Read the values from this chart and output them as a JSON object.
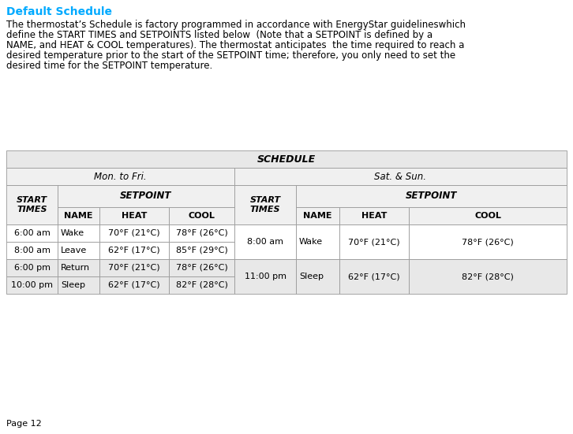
{
  "title": "Default Schedule",
  "title_color": "#00aaff",
  "paragraph_lines": [
    "The thermostat’s Schedule is factory programmed in accordance with EnergyStar guidelineswhich",
    "define the START TIMES and SETPOINTS listed below  (Note that a SETPOINT is defined by a",
    "NAME, and HEAT & COOL temperatures). The thermostat anticipates  the time required to reach a",
    "desired temperature prior to the start of the SETPOINT time; therefore, you only need to set the",
    "desired time for the SETPOINT temperature."
  ],
  "page_label": "Page 12",
  "table_header": "SCHEDULE",
  "col_group1": "Mon. to Fri.",
  "col_group2": "Sat. & Sun.",
  "mf_rows": [
    [
      "6:00 am",
      "Wake",
      "70°F (21°C)",
      "78°F (26°C)"
    ],
    [
      "8:00 am",
      "Leave",
      "62°F (17°C)",
      "85°F (29°C)"
    ],
    [
      "6:00 pm",
      "Return",
      "70°F (21°C)",
      "78°F (26°C)"
    ],
    [
      "10:00 pm",
      "Sleep",
      "62°F (17°C)",
      "82°F (28°C)"
    ]
  ],
  "ss_rows": [
    [
      "8:00 am",
      "Wake",
      "70°F (21°C)",
      "78°F (26°C)"
    ],
    [
      "11:00 pm",
      "Sleep",
      "62°F (17°C)",
      "82°F (28°C)"
    ]
  ],
  "bg_header": "#e8e8e8",
  "bg_subheader": "#f0f0f0",
  "bg_white": "#ffffff",
  "bg_data_odd": "#ffffff",
  "bg_data_even": "#e8e8e8",
  "border_color": "#999999",
  "text_color": "#000000",
  "title_fontsize": 10,
  "para_fontsize": 8.5,
  "table_fontsize": 8.0
}
